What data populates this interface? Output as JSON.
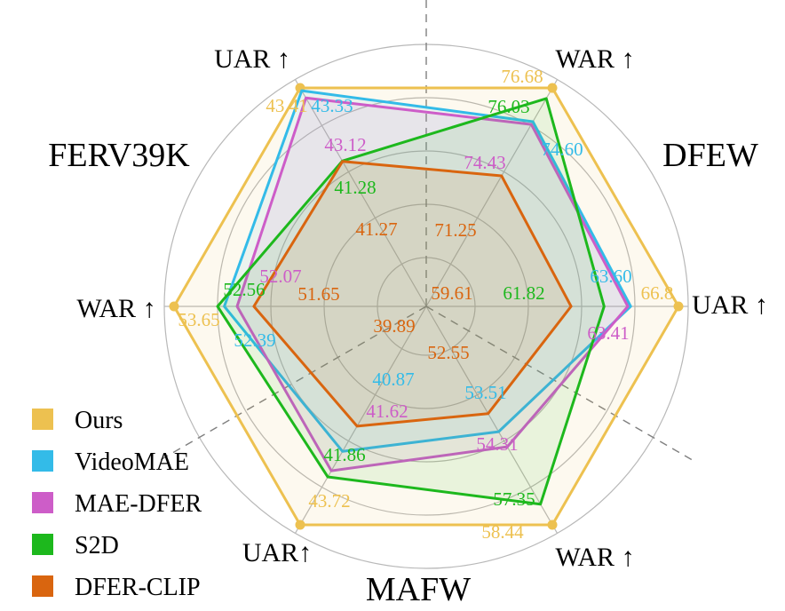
{
  "chart_data": {
    "type": "radar",
    "datasets": [
      "FERV39K",
      "DFEW",
      "MAFW"
    ],
    "axes": [
      "WAR ↑",
      "UAR ↑",
      "WAR ↑",
      "UAR↑",
      "WAR ↑",
      "UAR ↑"
    ],
    "spokes": [
      {
        "dataset": "DFEW",
        "metric": "WAR ↑"
      },
      {
        "dataset": "DFEW",
        "metric": "UAR ↑"
      },
      {
        "dataset": "MAFW",
        "metric": "WAR ↑"
      },
      {
        "dataset": "MAFW",
        "metric": "UAR↑"
      },
      {
        "dataset": "FERV39K",
        "metric": "WAR ↑"
      },
      {
        "dataset": "FERV39K",
        "metric": "UAR ↑"
      }
    ],
    "series": [
      {
        "name": "Ours",
        "color": "#EDC150",
        "values": [
          76.68,
          66.8,
          58.44,
          43.72,
          53.65,
          43.41
        ],
        "labels": [
          "76.68",
          "66.8",
          "58.44",
          "43.72",
          "53.65",
          "43.41"
        ]
      },
      {
        "name": "VideoMAE",
        "color": "#33BBE8",
        "values": [
          74.6,
          63.6,
          53.51,
          40.87,
          52.39,
          43.33
        ],
        "labels": [
          "74.60",
          "63.60",
          "53.51",
          "40.87",
          "52.39",
          "43.33"
        ]
      },
      {
        "name": "MAE-DFER",
        "color": "#CD5DC8",
        "values": [
          74.43,
          63.41,
          54.31,
          41.62,
          52.07,
          43.12
        ],
        "labels": [
          "74.43",
          "63.41",
          "54.31",
          "41.62",
          "52.07",
          "43.12"
        ]
      },
      {
        "name": "S2D",
        "color": "#1DB81D",
        "values": [
          76.03,
          61.82,
          57.35,
          41.86,
          52.56,
          41.28
        ],
        "labels": [
          "76.03",
          "61.82",
          "57.35",
          "41.86",
          "52.56",
          "41.28"
        ]
      },
      {
        "name": "DFER-CLIP",
        "color": "#D9650F",
        "values": [
          71.25,
          59.61,
          52.55,
          39.89,
          51.65,
          41.27
        ],
        "labels": [
          "71.25",
          "59.61",
          "52.55",
          "39.89",
          "51.65",
          "41.27"
        ]
      }
    ],
    "grid": true,
    "legend_position": "bottom-left"
  }
}
